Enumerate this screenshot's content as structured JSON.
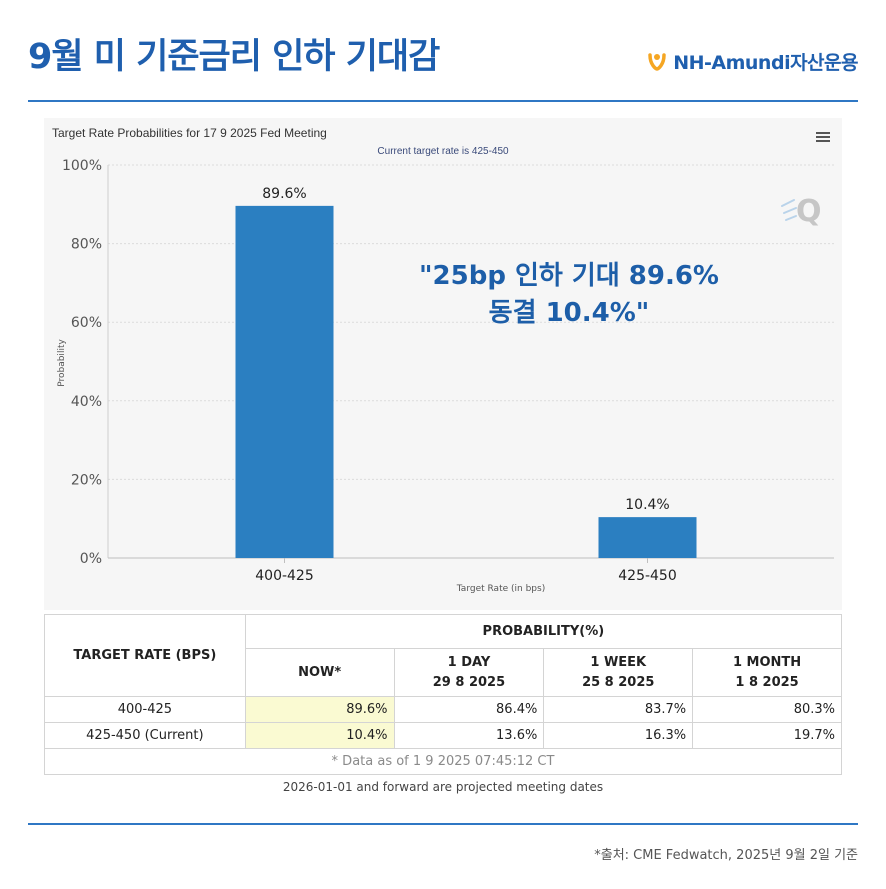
{
  "header": {
    "title": "9월 미 기준금리 인하 기대감",
    "brand": "NH-Amundi자산운용"
  },
  "colors": {
    "accent": "#1f5fae",
    "bar": "#2b7fc1",
    "brand_orange": "#f5a623",
    "now_highlight": "#fafad2"
  },
  "chart_data": {
    "type": "bar",
    "title": "Target Rate Probabilities for 17 9 2025 Fed Meeting",
    "subtitle": "Current target rate is 425-450",
    "categories": [
      "400-425",
      "425-450"
    ],
    "values": [
      89.6,
      10.4
    ],
    "value_labels": [
      "89.6%",
      "10.4%"
    ],
    "xlabel": "Target Rate (in bps)",
    "ylabel": "Probability",
    "ylim": [
      0,
      100
    ],
    "yticks": [
      0,
      20,
      40,
      60,
      80,
      100
    ],
    "ytick_labels": [
      "0%",
      "20%",
      "40%",
      "60%",
      "80%",
      "100%"
    ],
    "grid": true
  },
  "callout": {
    "line1": "\"25bp 인하 기대 89.6%",
    "line2": "동결 10.4%\""
  },
  "table": {
    "col_target": "TARGET RATE (BPS)",
    "col_probability": "PROBABILITY(%)",
    "sub_headers": [
      {
        "line1": "NOW*",
        "line2": ""
      },
      {
        "line1": "1 DAY",
        "line2": "29 8 2025"
      },
      {
        "line1": "1 WEEK",
        "line2": "25 8 2025"
      },
      {
        "line1": "1 MONTH",
        "line2": "1 8 2025"
      }
    ],
    "rows": [
      {
        "rate": "400-425",
        "values": [
          "89.6%",
          "86.4%",
          "83.7%",
          "80.3%"
        ]
      },
      {
        "rate": "425-450 (Current)",
        "values": [
          "10.4%",
          "13.6%",
          "16.3%",
          "19.7%"
        ]
      }
    ],
    "as_of": "* Data as of 1 9 2025 07:45:12 CT"
  },
  "note": "2026-01-01 and forward are projected meeting dates",
  "source": "*출처: CME Fedwatch, 2025년 9월 2일 기준",
  "icons": {
    "menu": "hamburger-menu-icon",
    "watermark": "quikstrike-q-icon",
    "brand": "nh-logo-icon"
  }
}
